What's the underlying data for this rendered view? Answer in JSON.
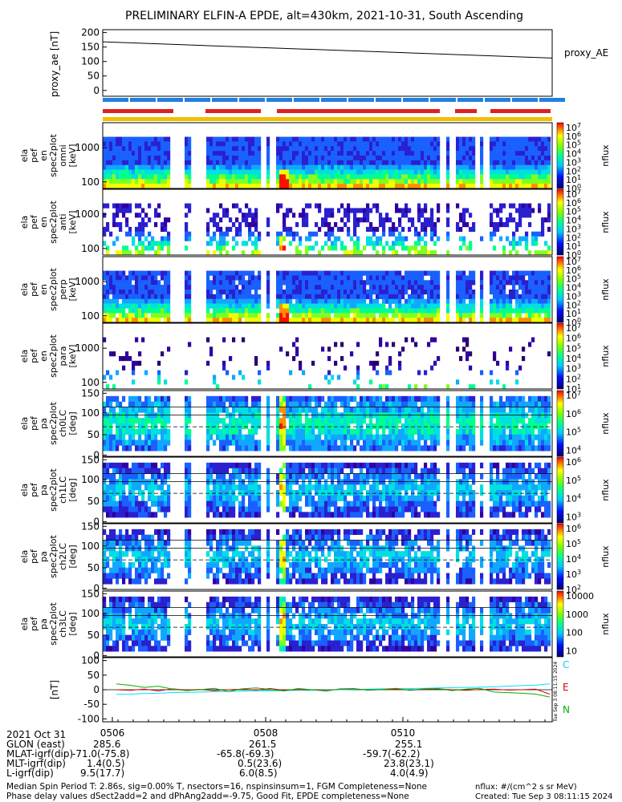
{
  "title": "PRELIMINARY ELFIN-A EPDE, alt=430km, 2021-10-31, South Ascending",
  "chart_data": [
    {
      "type": "line",
      "ylabel": "proxy_ae [nT]",
      "yticks": [
        "200",
        "150",
        "100",
        "50",
        "0"
      ],
      "ylim": [
        -20,
        210
      ],
      "series": [
        {
          "name": "proxy_AE",
          "x": [
            0,
            1
          ],
          "values": [
            168,
            112
          ]
        }
      ]
    },
    {
      "type": "heatmap",
      "panels": [
        {
          "ylabel": [
            "ela",
            "pef",
            "en",
            "spec2plot",
            "omni",
            "[keV]"
          ],
          "yticks": [
            "1000",
            "100"
          ],
          "cbar": "nflux",
          "cticks": [
            "10^7",
            "10^6",
            "10^5",
            "10^4",
            "10^3",
            "10^2",
            "10^1",
            "10^0"
          ]
        },
        {
          "ylabel": [
            "ela",
            "pef",
            "en",
            "spec2plot",
            "anti",
            "[keV]"
          ],
          "yticks": [
            "1000",
            "100"
          ],
          "cbar": "nflux",
          "cticks": [
            "10^7",
            "10^6",
            "10^5",
            "10^4",
            "10^3",
            "10^2",
            "10^1",
            "10^0"
          ]
        },
        {
          "ylabel": [
            "ela",
            "pef",
            "en",
            "spec2plot",
            "perp",
            "[keV]"
          ],
          "yticks": [
            "1000",
            "100"
          ],
          "cbar": "nflux",
          "cticks": [
            "10^7",
            "10^6",
            "10^5",
            "10^4",
            "10^3",
            "10^2",
            "10^1",
            "10^0"
          ]
        },
        {
          "ylabel": [
            "ela",
            "pef",
            "en",
            "spec2plot",
            "para",
            "[keV]"
          ],
          "yticks": [
            "1000",
            "100"
          ],
          "cbar": "nflux",
          "cticks": [
            "10^7",
            "10^6",
            "10^5",
            "10^4",
            "10^3",
            "10^2",
            "10^1"
          ]
        },
        {
          "ylabel": [
            "ela",
            "pef",
            "pa",
            "spec2plot",
            "ch0LC",
            "[deg]"
          ],
          "yticks": [
            "150",
            "100",
            "50",
            "0"
          ],
          "cbar": "nflux",
          "cticks": [
            "10^7",
            "10^6",
            "10^5",
            "10^4"
          ]
        },
        {
          "ylabel": [
            "ela",
            "pef",
            "pa",
            "spec2plot",
            "ch1LC",
            "[deg]"
          ],
          "yticks": [
            "150",
            "100",
            "50",
            "0"
          ],
          "cbar": "nflux",
          "cticks": [
            "10^6",
            "10^5",
            "10^4",
            "10^3"
          ]
        },
        {
          "ylabel": [
            "ela",
            "pef",
            "pa",
            "spec2plot",
            "ch2LC",
            "[deg]"
          ],
          "yticks": [
            "150",
            "100",
            "50",
            "0"
          ],
          "cbar": "nflux",
          "cticks": [
            "10^6",
            "10^5",
            "10^4",
            "10^3",
            "10^2"
          ]
        },
        {
          "ylabel": [
            "ela",
            "pef",
            "pa",
            "spec2plot",
            "ch3LC",
            "[deg]"
          ],
          "yticks": [
            "150",
            "100",
            "50",
            "0"
          ],
          "cbar": "nflux",
          "cticks": [
            "10000",
            "1000",
            "100",
            "10"
          ]
        }
      ]
    },
    {
      "type": "line",
      "ylabel": "[nT]",
      "yticks": [
        "100",
        "50",
        "0",
        "-50",
        "-100"
      ],
      "ylim": [
        -110,
        110
      ],
      "series": [
        {
          "name": "C",
          "color": "#00e0ff",
          "values": [
            -16,
            -15,
            -13,
            -12,
            -10,
            -9,
            -8,
            -7,
            -6,
            -5,
            -4,
            -4,
            -3,
            -2,
            -2,
            -1,
            0,
            1,
            2,
            3,
            3,
            4,
            5,
            6,
            7,
            8,
            9,
            10,
            12,
            14,
            16,
            20
          ]
        },
        {
          "name": "E",
          "color": "#e00000",
          "values": [
            0,
            -2,
            2,
            -4,
            3,
            -1,
            1,
            -3,
            0,
            2,
            -1,
            4,
            -2,
            1,
            0,
            -3,
            2,
            3,
            -1,
            0,
            2,
            -2,
            1,
            3,
            0,
            -2,
            1,
            2,
            -1,
            0,
            2,
            -15
          ]
        },
        {
          "name": "N",
          "color": "#00b000",
          "values": [
            20,
            15,
            8,
            12,
            2,
            -3,
            0,
            5,
            -6,
            3,
            6,
            1,
            -4,
            4,
            0,
            -5,
            3,
            4,
            -2,
            1,
            5,
            -2,
            3,
            4,
            -3,
            2,
            5,
            -8,
            -10,
            -12,
            -15,
            -25
          ]
        }
      ]
    }
  ],
  "side_labels": {
    "proxy_ae": "proxy_AE",
    "c": "C",
    "e": "E",
    "n": "N"
  },
  "time_axis": {
    "labels": [
      "0506",
      "0508",
      "0510"
    ]
  },
  "ephemeris": {
    "r1": {
      "label": "2021 Oct 31",
      "v1": "",
      "v2": "",
      "v3": ""
    },
    "r2": {
      "label": "GLON (east)",
      "v1": "285.6",
      "v2": "261.5",
      "v3": "255.1"
    },
    "r3": {
      "label": "MLAT-igrf(dip)",
      "v1": "-71.0(-75.8)",
      "v2": "-65.8(-69.3)",
      "v3": "-59.7(-62.2)"
    },
    "r4": {
      "label": "MLT-igrf(dip)",
      "v1": "1.4(0.5)",
      "v2": "0.5(23.6)",
      "v3": "23.8(23.1)"
    },
    "r5": {
      "label": "L-igrf(dip)",
      "v1": "9.5(17.7)",
      "v2": "6.0(8.5)",
      "v3": "4.0(4.9)"
    }
  },
  "footer": {
    "line1": "Median Spin Period T: 2.86s, sig=0.00% T, nsectors=16, nspinsinsum=1, FGM Completeness=None",
    "line2": "Phase delay values dSect2add=2 and dPhAng2add=-9.75, Good Fit, EPDE completeness=None",
    "nflux_unit": "nflux: #/(cm^2 s sr MeV)",
    "created": "Created: Tue Sep  3 08:11:15 2024"
  },
  "stamp": "Tue Sep  3 08:11:15 2024",
  "colors": {
    "red_bar": "#e02020",
    "blue_bar": "#2080e0",
    "gold_bar": "#f0c000"
  }
}
